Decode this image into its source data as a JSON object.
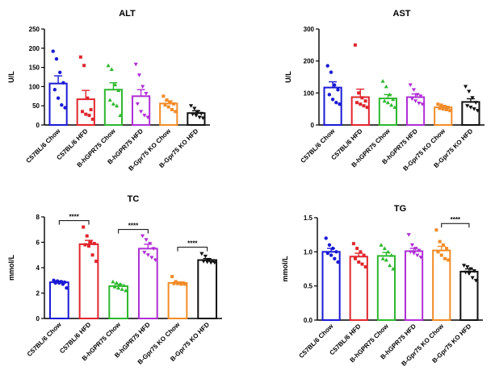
{
  "chart_data": [
    {
      "panel": "alt",
      "type": "bar",
      "title": "ALT",
      "ylabel": "U/L",
      "ylim": [
        0,
        250
      ],
      "yticks": [
        "0",
        "50",
        "100",
        "150",
        "200",
        "250"
      ],
      "categories": [
        "C57BL/6 Chow",
        "C57BL/6 HFD",
        "B-hGPR75 Chow",
        "B-hGPR75 HFD",
        "B-Gpr75 KO Chow",
        "B-Gpr75 KO HFD"
      ],
      "colors": [
        "#1a1ad6",
        "#e0262d",
        "#2eb82e",
        "#b02ed6",
        "#f28c28",
        "#111111"
      ],
      "values": [
        108,
        67,
        92,
        75,
        56,
        31
      ],
      "errors": [
        20,
        23,
        18,
        17,
        7,
        6
      ],
      "points": [
        [
          192,
          172,
          137,
          110,
          92,
          70,
          52,
          45
        ],
        [
          177,
          155,
          70,
          40,
          35,
          28,
          25,
          15
        ],
        [
          155,
          145,
          105,
          90,
          65,
          55,
          50,
          25
        ],
        [
          158,
          130,
          100,
          82,
          55,
          35,
          25,
          20
        ],
        [
          75,
          65,
          58,
          55,
          52,
          47,
          40,
          35
        ],
        [
          50,
          43,
          35,
          30,
          28,
          25,
          20,
          18
        ]
      ],
      "significance": []
    },
    {
      "panel": "ast",
      "type": "bar",
      "title": "AST",
      "ylabel": "U/L",
      "ylim": [
        0,
        300
      ],
      "yticks": [
        "0",
        "100",
        "200",
        "300"
      ],
      "categories": [
        "C57BL/6 Chow",
        "C57BL/6 HFD",
        "B-hGPR75 Chow",
        "B-hGPR75 HFD",
        "B-Gpr75 KO Chow",
        "B-Gpr75 KO HFD"
      ],
      "colors": [
        "#1a1ad6",
        "#e0262d",
        "#2eb82e",
        "#b02ed6",
        "#f28c28",
        "#111111"
      ],
      "values": [
        117,
        87,
        83,
        87,
        55,
        72
      ],
      "errors": [
        18,
        25,
        12,
        10,
        4,
        10
      ],
      "points": [
        [
          185,
          165,
          125,
          110,
          95,
          80,
          70,
          65
        ],
        [
          250,
          100,
          85,
          75,
          70,
          65,
          60,
          55
        ],
        [
          137,
          120,
          95,
          80,
          75,
          70,
          62,
          55
        ],
        [
          125,
          110,
          95,
          90,
          82,
          75,
          68,
          65
        ],
        [
          65,
          62,
          58,
          55,
          52,
          50,
          48,
          45
        ],
        [
          120,
          105,
          85,
          70,
          60,
          55,
          50,
          45
        ]
      ],
      "significance": []
    },
    {
      "panel": "tc",
      "type": "bar",
      "title": "TC",
      "ylabel": "mmol/L",
      "ylim": [
        0,
        8
      ],
      "yticks": [
        "0",
        "2",
        "4",
        "6",
        "8"
      ],
      "categories": [
        "C57BL/6 Chow",
        "C57BL/6 HFD",
        "B-hGPR75 Chow",
        "B-hGPR75 HFD",
        "B-Gpr75 KO Chow",
        "B-Gpr75 KO HFD"
      ],
      "colors": [
        "#1a1ad6",
        "#e0262d",
        "#2eb82e",
        "#b02ed6",
        "#f28c28",
        "#111111"
      ],
      "values": [
        2.85,
        5.85,
        2.55,
        5.5,
        2.8,
        4.6
      ],
      "errors": [
        0.1,
        0.3,
        0.15,
        0.35,
        0.08,
        0.12
      ],
      "points": [
        [
          3.0,
          2.95,
          2.9,
          2.85,
          2.8,
          2.8,
          2.7,
          2.4
        ],
        [
          7.2,
          6.5,
          6.0,
          5.9,
          5.8,
          5.7,
          5.0,
          4.5
        ],
        [
          2.9,
          2.8,
          2.7,
          2.6,
          2.5,
          2.4,
          2.3,
          2.2
        ],
        [
          6.5,
          6.2,
          5.9,
          5.5,
          5.2,
          5.0,
          4.8,
          4.6
        ],
        [
          3.3,
          2.9,
          2.8,
          2.8,
          2.75,
          2.75,
          2.7,
          2.7
        ],
        [
          5.1,
          4.9,
          4.6,
          4.55,
          4.5,
          4.45,
          4.4,
          4.4
        ]
      ],
      "significance": [
        {
          "from": 0,
          "to": 1,
          "label": "****"
        },
        {
          "from": 2,
          "to": 3,
          "label": "****"
        },
        {
          "from": 4,
          "to": 5,
          "label": "****"
        }
      ]
    },
    {
      "panel": "tg",
      "type": "bar",
      "title": "TG",
      "ylabel": "mmol/L",
      "ylim": [
        0,
        1.5
      ],
      "yticks": [
        "0.0",
        "0.5",
        "1.0",
        "1.5"
      ],
      "categories": [
        "C57BL/6 Chow",
        "C57BL/6 HFD",
        "B-hGPR75 Chow",
        "B-hGPR75 HFD",
        "B-Gpr75 KO Chow",
        "B-Gpr75 KO HFD"
      ],
      "colors": [
        "#1a1ad6",
        "#e0262d",
        "#2eb82e",
        "#b02ed6",
        "#f28c28",
        "#111111"
      ],
      "values": [
        1.0,
        0.93,
        0.94,
        1.01,
        1.02,
        0.71
      ],
      "errors": [
        0.05,
        0.05,
        0.05,
        0.04,
        0.06,
        0.04
      ],
      "points": [
        [
          1.2,
          1.1,
          1.05,
          1.0,
          0.98,
          0.95,
          0.9,
          0.85
        ],
        [
          1.12,
          1.05,
          1.0,
          0.95,
          0.9,
          0.85,
          0.82,
          0.78
        ],
        [
          1.1,
          1.05,
          1.0,
          0.95,
          0.9,
          0.88,
          0.8,
          0.75
        ],
        [
          1.25,
          1.1,
          1.05,
          1.02,
          1.0,
          0.98,
          0.95,
          0.92
        ],
        [
          1.32,
          1.15,
          1.1,
          1.05,
          1.0,
          0.95,
          0.9,
          0.88
        ],
        [
          0.8,
          0.78,
          0.75,
          0.72,
          0.7,
          0.68,
          0.62,
          0.58
        ]
      ],
      "significance": [
        {
          "from": 4,
          "to": 5,
          "label": "****"
        }
      ]
    }
  ]
}
